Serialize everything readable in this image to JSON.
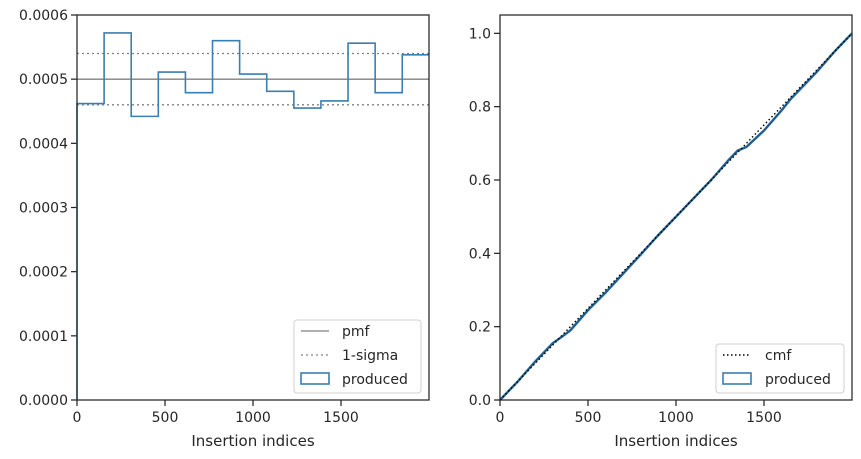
{
  "chart_data": [
    {
      "type": "step",
      "xlabel": "Insertion indices",
      "xlim": [
        0,
        2000
      ],
      "ylim": [
        0,
        0.0006
      ],
      "xticks": [
        0,
        500,
        1000,
        1500
      ],
      "xtick_labels": [
        "0",
        "500",
        "1000",
        "1500"
      ],
      "yticks": [
        0,
        0.0001,
        0.0002,
        0.0003,
        0.0004,
        0.0005,
        0.0006
      ],
      "ytick_labels": [
        "0.0000",
        "0.0001",
        "0.0002",
        "0.0003",
        "0.0004",
        "0.0005",
        "0.0006"
      ],
      "pmf_value": 0.0005,
      "sigma_band": [
        0.00046,
        0.00054
      ],
      "bin_edges": [
        0,
        154,
        308,
        462,
        616,
        770,
        924,
        1078,
        1232,
        1386,
        1540,
        1694,
        1848,
        2000
      ],
      "bin_values": [
        0.000462,
        0.000572,
        0.000442,
        0.000511,
        0.000479,
        0.00056,
        0.000508,
        0.000481,
        0.000455,
        0.000466,
        0.000556,
        0.000479,
        0.000538
      ],
      "legend": {
        "position": "lower right",
        "entries": [
          {
            "label": "pmf",
            "style": "solid-line",
            "color": "#808080"
          },
          {
            "label": "1-sigma",
            "style": "dotted-line",
            "color": "#808080"
          },
          {
            "label": "produced",
            "style": "box",
            "color": "#3a7fb0"
          }
        ]
      },
      "colors": {
        "produced": "#3a7fb0",
        "pmf": "#808080",
        "sigma": "#808080"
      }
    },
    {
      "type": "line",
      "xlabel": "Insertion indices",
      "xlim": [
        0,
        2000
      ],
      "ylim": [
        0,
        1.05
      ],
      "xticks": [
        0,
        500,
        1000,
        1500
      ],
      "xtick_labels": [
        "0",
        "500",
        "1000",
        "1500"
      ],
      "yticks": [
        0,
        0.2,
        0.4,
        0.6,
        0.8,
        1.0
      ],
      "ytick_labels": [
        "0.0",
        "0.2",
        "0.4",
        "0.6",
        "0.8",
        "1.0"
      ],
      "cmf": {
        "x": [
          0,
          2000
        ],
        "y": [
          0,
          1
        ]
      },
      "produced": {
        "x": [
          0,
          100,
          200,
          300,
          350,
          400,
          500,
          600,
          700,
          800,
          900,
          1000,
          1100,
          1200,
          1300,
          1350,
          1400,
          1500,
          1600,
          1650,
          1700,
          1800,
          1900,
          2000
        ],
        "y": [
          0,
          0.05,
          0.105,
          0.155,
          0.172,
          0.19,
          0.245,
          0.293,
          0.345,
          0.397,
          0.45,
          0.5,
          0.55,
          0.6,
          0.655,
          0.68,
          0.69,
          0.735,
          0.79,
          0.82,
          0.845,
          0.895,
          0.95,
          1.0
        ]
      },
      "legend": {
        "position": "lower right",
        "entries": [
          {
            "label": "cmf",
            "style": "dotted-line",
            "color": "#000000"
          },
          {
            "label": "produced",
            "style": "box",
            "color": "#3a7fb0"
          }
        ]
      },
      "colors": {
        "produced": "#1f5f8f",
        "cmf": "#000000"
      }
    }
  ]
}
